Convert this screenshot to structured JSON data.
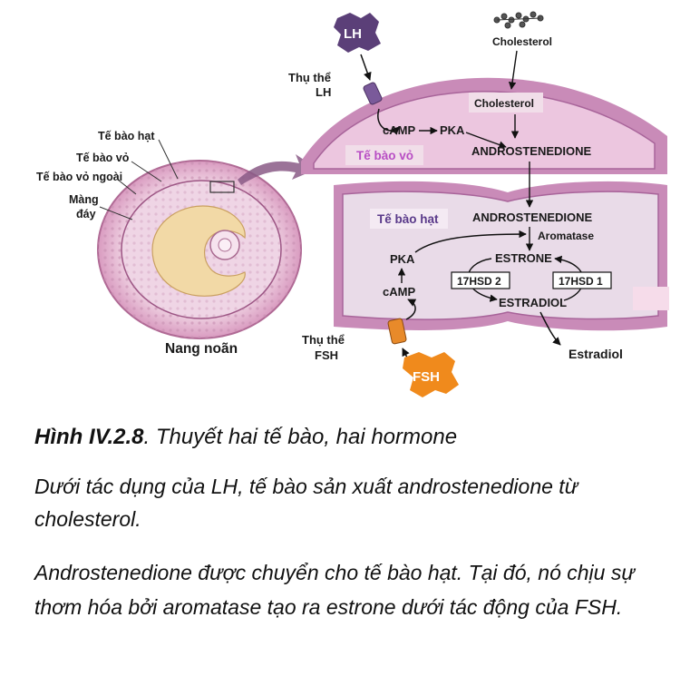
{
  "figure": {
    "lh": "LH",
    "fsh": "FSH",
    "cholesterol_top": "Cholesterol",
    "cholesterol_box": "Cholesterol",
    "receptor_lh": [
      "Thụ thể",
      "LH"
    ],
    "receptor_fsh": [
      "Thụ thể",
      "FSH"
    ],
    "camp_theca": "cAMP",
    "pka_theca": "PKA",
    "theca_cell": "Tế bào vỏ",
    "androstenedione_theca": "ANDROSTENEDIONE",
    "granulosa_cell": "Tế bào hạt",
    "androstenedione_granulosa": "ANDROSTENEDIONE",
    "aromatase": "Aromatase",
    "estrone": "ESTRONE",
    "hsd2": "17HSD 2",
    "hsd1": "17HSD 1",
    "estradiol_inner": "ESTRADIOL",
    "pka_granulosa": "PKA",
    "camp_granulosa": "cAMP",
    "estradiol_out": "Estradiol",
    "follicle": "Nang noãn",
    "follicle_labels": {
      "granulosa": "Tế bào hạt",
      "theca": "Tế bào vỏ",
      "outer_theca": "Tế bào vỏ ngoài",
      "basement": [
        "Màng",
        "đáy"
      ]
    }
  },
  "caption": {
    "label": "Hình IV.2.8",
    "title": ".  Thuyết hai tế bào, hai hormone"
  },
  "paragraphs": [
    "Dưới tác dụng của LH, tế bào sản xuất androstenedione từ cholesterol.",
    "Androstenedione được chuyển cho tế bào hạt. Tại đó, nó chịu sự thơm hóa bởi aromatase tạo ra estrone dưới tác động của FSH."
  ],
  "colors": {
    "lh": "#5b3f78",
    "fsh": "#f08a1c",
    "theca_fill": "#e6c3dd",
    "membrane": "#c98bb8",
    "granulosa_fill": "#e9dbe8",
    "follicle_outer": "#e8bcd4",
    "antrum": "#f2d9a6"
  }
}
